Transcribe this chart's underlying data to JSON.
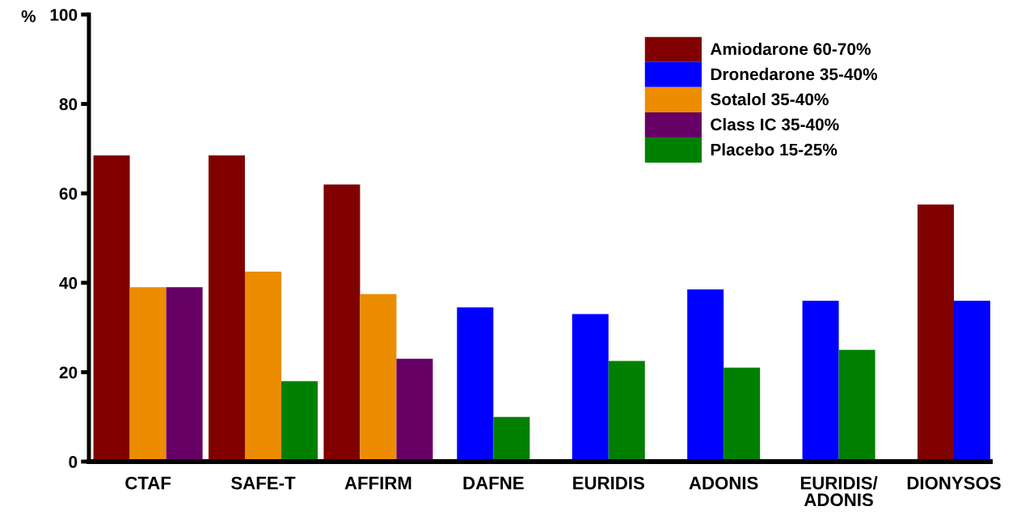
{
  "chart_data": {
    "type": "bar",
    "ylabel": "%",
    "categories": [
      "CTAF",
      "SAFE-T",
      "AFFIRM",
      "DAFNE",
      "EURIDIS",
      "ADONIS",
      "EURIDIS/\nADONIS",
      "DIONYSOS"
    ],
    "series": [
      {
        "name": "Amiodarone 60-70%",
        "color": "#800000",
        "values": [
          68.5,
          68.5,
          62,
          null,
          null,
          null,
          null,
          57.5
        ]
      },
      {
        "name": "Dronedarone 35-40%",
        "color": "#0000ff",
        "values": [
          null,
          null,
          null,
          34.5,
          33,
          38.5,
          36,
          36
        ]
      },
      {
        "name": "Sotalol 35-40%",
        "color": "#ec8c00",
        "values": [
          39,
          42.5,
          37.5,
          null,
          null,
          null,
          null,
          null
        ]
      },
      {
        "name": "Class IC 35-40%",
        "color": "#660066",
        "values": [
          39,
          null,
          23,
          null,
          null,
          null,
          null,
          null
        ]
      },
      {
        "name": "Placebo 15-25%",
        "color": "#008000",
        "values": [
          null,
          18,
          null,
          10,
          22.5,
          21,
          25,
          null
        ]
      }
    ],
    "ylim": [
      0,
      100
    ],
    "yticks": [
      0,
      20,
      40,
      60,
      80,
      100
    ],
    "grid": false,
    "legend": "top right"
  }
}
